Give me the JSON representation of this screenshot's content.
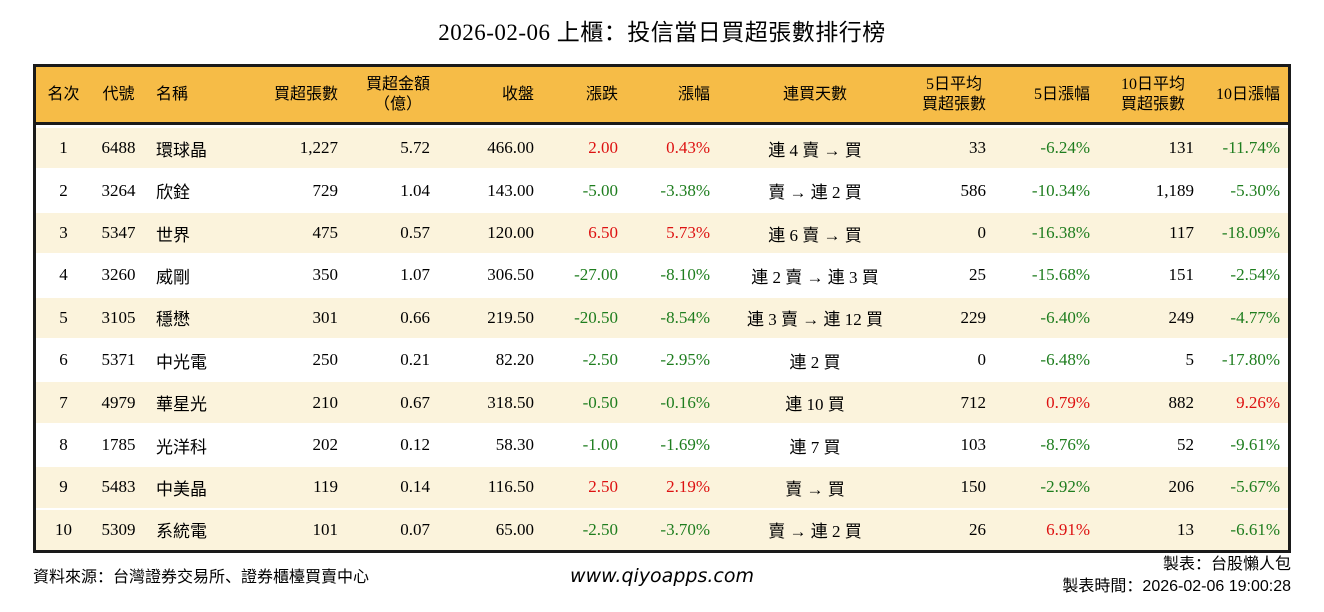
{
  "chart_data": {
    "type": "table",
    "title": "2026-02-06 上櫃：投信當日買超張數排行榜",
    "columns": [
      "名次",
      "代號",
      "名稱",
      "買超張數",
      "買超金額\n（億）",
      "收盤",
      "漲跌",
      "漲幅",
      "連買天數",
      "5日平均\n買超張數",
      "5日漲幅",
      "10日平均\n買超張數",
      "10日漲幅"
    ],
    "rows": [
      {
        "rank": "1",
        "code": "6488",
        "name": "環球晶",
        "net_buy": "1,227",
        "amount": "5.72",
        "close": "466.00",
        "change": "2.00",
        "change_pct": "0.43%",
        "streak": "連 4 賣 → 買",
        "avg5": "33",
        "pct5": "-6.24%",
        "avg10": "131",
        "pct10": "-11.74%"
      },
      {
        "rank": "2",
        "code": "3264",
        "name": "欣銓",
        "net_buy": "729",
        "amount": "1.04",
        "close": "143.00",
        "change": "-5.00",
        "change_pct": "-3.38%",
        "streak": "賣 → 連 2 買",
        "avg5": "586",
        "pct5": "-10.34%",
        "avg10": "1,189",
        "pct10": "-5.30%"
      },
      {
        "rank": "3",
        "code": "5347",
        "name": "世界",
        "net_buy": "475",
        "amount": "0.57",
        "close": "120.00",
        "change": "6.50",
        "change_pct": "5.73%",
        "streak": "連 6 賣 → 買",
        "avg5": "0",
        "pct5": "-16.38%",
        "avg10": "117",
        "pct10": "-18.09%"
      },
      {
        "rank": "4",
        "code": "3260",
        "name": "威剛",
        "net_buy": "350",
        "amount": "1.07",
        "close": "306.50",
        "change": "-27.00",
        "change_pct": "-8.10%",
        "streak": "連 2 賣 → 連 3 買",
        "avg5": "25",
        "pct5": "-15.68%",
        "avg10": "151",
        "pct10": "-2.54%"
      },
      {
        "rank": "5",
        "code": "3105",
        "name": "穩懋",
        "net_buy": "301",
        "amount": "0.66",
        "close": "219.50",
        "change": "-20.50",
        "change_pct": "-8.54%",
        "streak": "連 3 賣 → 連 12 買",
        "avg5": "229",
        "pct5": "-6.40%",
        "avg10": "249",
        "pct10": "-4.77%"
      },
      {
        "rank": "6",
        "code": "5371",
        "name": "中光電",
        "net_buy": "250",
        "amount": "0.21",
        "close": "82.20",
        "change": "-2.50",
        "change_pct": "-2.95%",
        "streak": "連 2 買",
        "avg5": "0",
        "pct5": "-6.48%",
        "avg10": "5",
        "pct10": "-17.80%"
      },
      {
        "rank": "7",
        "code": "4979",
        "name": "華星光",
        "net_buy": "210",
        "amount": "0.67",
        "close": "318.50",
        "change": "-0.50",
        "change_pct": "-0.16%",
        "streak": "連 10 買",
        "avg5": "712",
        "pct5": "0.79%",
        "avg10": "882",
        "pct10": "9.26%"
      },
      {
        "rank": "8",
        "code": "1785",
        "name": "光洋科",
        "net_buy": "202",
        "amount": "0.12",
        "close": "58.30",
        "change": "-1.00",
        "change_pct": "-1.69%",
        "streak": "連 7 買",
        "avg5": "103",
        "pct5": "-8.76%",
        "avg10": "52",
        "pct10": "-9.61%"
      },
      {
        "rank": "9",
        "code": "5483",
        "name": "中美晶",
        "net_buy": "119",
        "amount": "0.14",
        "close": "116.50",
        "change": "2.50",
        "change_pct": "2.19%",
        "streak": "賣 → 買",
        "avg5": "150",
        "pct5": "-2.92%",
        "avg10": "206",
        "pct10": "-5.67%"
      },
      {
        "rank": "10",
        "code": "5309",
        "name": "系統電",
        "net_buy": "101",
        "amount": "0.07",
        "close": "65.00",
        "change": "-2.50",
        "change_pct": "-3.70%",
        "streak": "賣 → 連 2 買",
        "avg5": "26",
        "pct5": "6.91%",
        "avg10": "13",
        "pct10": "-6.61%"
      }
    ]
  },
  "footer": {
    "source": "資料來源：台灣證券交易所、證券櫃檯買賣中心",
    "website": "www.qiyoapps.com",
    "maker": "製表：台股懶人包",
    "made_time": "製表時間：2026-02-06 19:00:28"
  },
  "colors": {
    "header_bg": "#f6bc47",
    "row_alt_bg": "#fbf3dc",
    "up_red": "#dd1111",
    "down_green": "#1e7d1e"
  }
}
